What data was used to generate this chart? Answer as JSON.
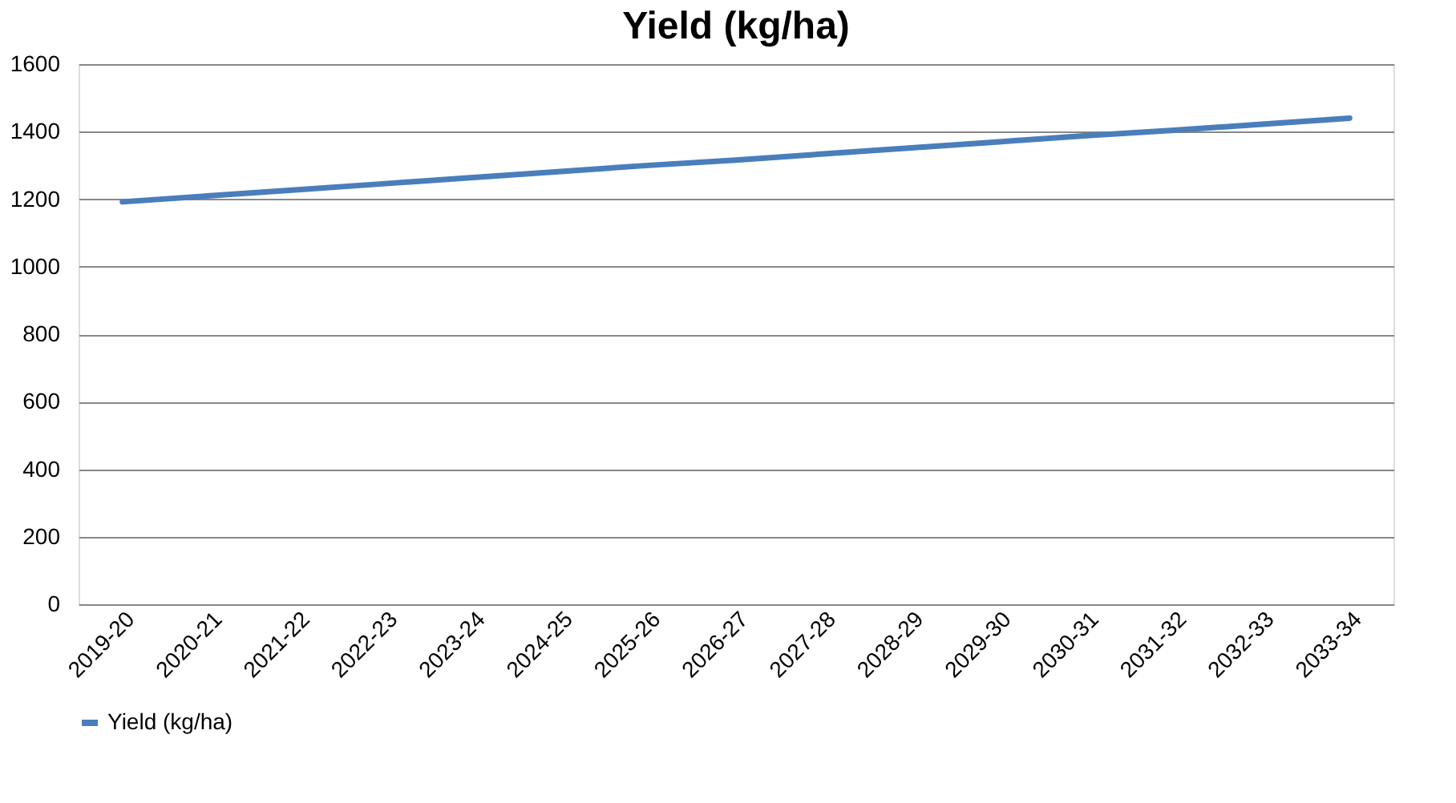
{
  "chart_data": {
    "type": "line",
    "title": "Yield (kg/ha)",
    "categories": [
      "2019-20",
      "2020-21",
      "2021-22",
      "2022-23",
      "2023-24",
      "2024-25",
      "2025-26",
      "2026-27",
      "2027-28",
      "2028-29",
      "2029-30",
      "2030-31",
      "2031-32",
      "2032-33",
      "2033-34"
    ],
    "series": [
      {
        "name": "Yield (kg/ha)",
        "color": "#4a7ebb",
        "values": [
          1192,
          1210,
          1228,
          1246,
          1264,
          1282,
          1300,
          1316,
          1334,
          1352,
          1370,
          1388,
          1404,
          1422,
          1440
        ]
      }
    ],
    "ylim": [
      0,
      1600
    ],
    "yticks": [
      0,
      200,
      400,
      600,
      800,
      1000,
      1200,
      1400,
      1600
    ],
    "grid": "y",
    "legend": "bottom",
    "marker": "none",
    "line_style": "solid"
  }
}
